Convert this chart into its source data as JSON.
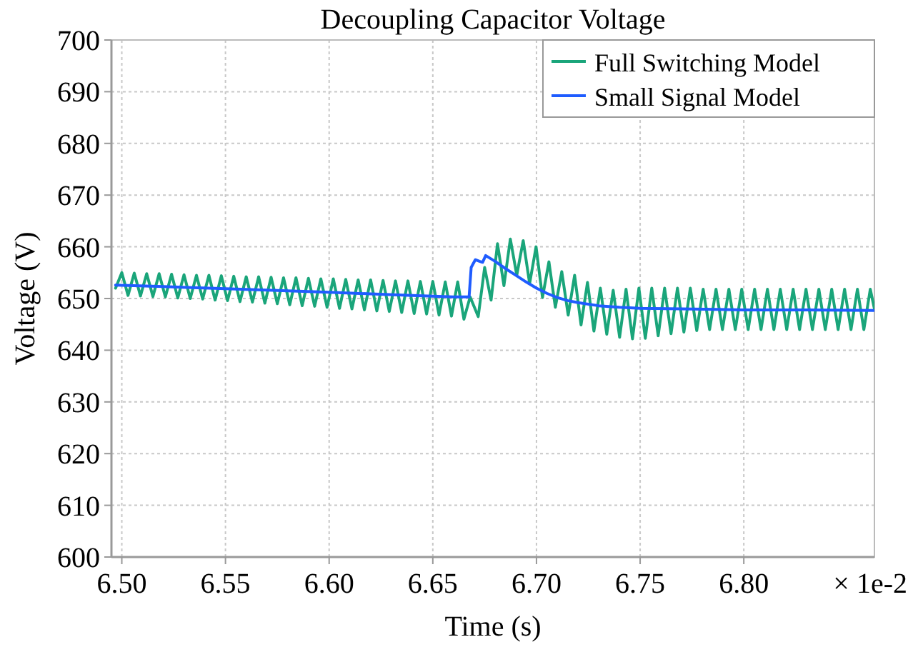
{
  "chart_data": {
    "type": "line",
    "title": "Decoupling Capacitor Voltage",
    "xlabel": "Time (s)",
    "ylabel": "Voltage (V)",
    "annotations": [
      "× 1e-2"
    ],
    "xlim": [
      6.495,
      6.863
    ],
    "xticks": [
      {
        "value": 6.5,
        "label": "6.50"
      },
      {
        "value": 6.55,
        "label": "6.55"
      },
      {
        "value": 6.6,
        "label": "6.60"
      },
      {
        "value": 6.65,
        "label": "6.65"
      },
      {
        "value": 6.7,
        "label": "6.70"
      },
      {
        "value": 6.75,
        "label": "6.75"
      },
      {
        "value": 6.8,
        "label": "6.80"
      }
    ],
    "ylim": [
      600,
      700
    ],
    "yticks": [
      600,
      610,
      620,
      630,
      640,
      650,
      660,
      670,
      680,
      690,
      700
    ],
    "grid": true,
    "legend": "top right",
    "line_style": "solid",
    "marker": "none",
    "series": [
      {
        "name": "Full Switching Model",
        "color": "#1aa57a",
        "x": [
          6.497,
          6.5,
          6.503,
          6.506,
          6.509,
          6.512,
          6.515,
          6.518,
          6.521,
          6.524,
          6.527,
          6.53,
          6.533,
          6.536,
          6.539,
          6.542,
          6.545,
          6.548,
          6.551,
          6.554,
          6.557,
          6.56,
          6.563,
          6.566,
          6.569,
          6.572,
          6.575,
          6.578,
          6.581,
          6.584,
          6.587,
          6.59,
          6.593,
          6.596,
          6.599,
          6.602,
          6.605,
          6.608,
          6.611,
          6.614,
          6.617,
          6.62,
          6.623,
          6.626,
          6.629,
          6.632,
          6.635,
          6.638,
          6.641,
          6.644,
          6.647,
          6.65,
          6.653,
          6.656,
          6.659,
          6.662,
          6.665,
          6.668,
          6.6719,
          6.675,
          6.6781,
          6.6812,
          6.6843,
          6.6874,
          6.6905,
          6.6936,
          6.6967,
          6.6998,
          6.7029,
          6.706,
          6.7091,
          6.7122,
          6.7153,
          6.7184,
          6.7215,
          6.7246,
          6.7277,
          6.7308,
          6.7339,
          6.737,
          6.7401,
          6.7432,
          6.7463,
          6.7494,
          6.7525,
          6.7556,
          6.7587,
          6.7618,
          6.7649,
          6.768,
          6.7711,
          6.7742,
          6.7773,
          6.7804,
          6.7835,
          6.7866,
          6.7897,
          6.7928,
          6.7959,
          6.799,
          6.8021,
          6.8052,
          6.8083,
          6.8114,
          6.8145,
          6.8176,
          6.8207,
          6.8238,
          6.8269,
          6.83,
          6.8331,
          6.8362,
          6.8393,
          6.8424,
          6.8455,
          6.8486,
          6.8517,
          6.8548,
          6.8579,
          6.861,
          6.863
        ],
        "values": [
          652.0,
          655.0,
          650.6,
          654.9,
          650.5,
          654.8,
          650.4,
          654.8,
          650.3,
          654.7,
          650.1,
          654.6,
          650.0,
          654.5,
          649.9,
          654.5,
          649.7,
          654.4,
          649.6,
          654.3,
          649.4,
          654.2,
          649.3,
          654.2,
          649.1,
          654.1,
          649.0,
          654.0,
          648.8,
          654.0,
          648.6,
          653.9,
          648.5,
          653.8,
          648.3,
          653.8,
          648.1,
          653.7,
          648.0,
          653.6,
          647.8,
          653.6,
          647.6,
          653.5,
          647.5,
          653.4,
          647.3,
          653.4,
          647.1,
          653.3,
          647.0,
          653.3,
          646.8,
          653.2,
          646.6,
          653.2,
          646.0,
          650.3,
          646.5,
          656.0,
          649.7,
          660.6,
          652.5,
          661.5,
          654.5,
          661.2,
          652.9,
          660.0,
          650.2,
          657.1,
          648.3,
          655.2,
          646.8,
          654.5,
          644.9,
          653.1,
          643.7,
          652.0,
          643.1,
          651.6,
          642.5,
          651.8,
          642.2,
          652.0,
          642.3,
          652.0,
          642.8,
          652.0,
          643.2,
          652.0,
          643.5,
          652.0,
          643.8,
          651.8,
          644.0,
          651.8,
          644.0,
          651.8,
          644.0,
          651.8,
          644.0,
          651.8,
          644.0,
          651.8,
          644.0,
          651.8,
          644.0,
          651.8,
          644.0,
          651.8,
          644.0,
          651.8,
          644.0,
          651.8,
          644.0,
          651.8,
          644.0,
          651.8,
          644.0,
          651.8,
          648.0
        ]
      },
      {
        "name": "Small Signal Model",
        "color": "#1f5cff",
        "x": [
          6.497,
          6.52,
          6.55,
          6.58,
          6.6,
          6.62,
          6.64,
          6.66,
          6.6675,
          6.6685,
          6.6705,
          6.6725,
          6.674,
          6.6755,
          6.68,
          6.685,
          6.69,
          6.695,
          6.7,
          6.705,
          6.71,
          6.715,
          6.72,
          6.73,
          6.74,
          6.75,
          6.77,
          6.8,
          6.83,
          6.863
        ],
        "values": [
          652.6,
          652.3,
          651.9,
          651.5,
          651.2,
          650.9,
          650.6,
          650.3,
          650.3,
          656.0,
          657.5,
          657.2,
          657.0,
          658.3,
          657.2,
          655.8,
          654.5,
          653.2,
          652.0,
          651.0,
          650.2,
          649.6,
          649.2,
          648.6,
          648.3,
          648.1,
          648.0,
          647.8,
          647.8,
          647.7
        ]
      }
    ]
  }
}
